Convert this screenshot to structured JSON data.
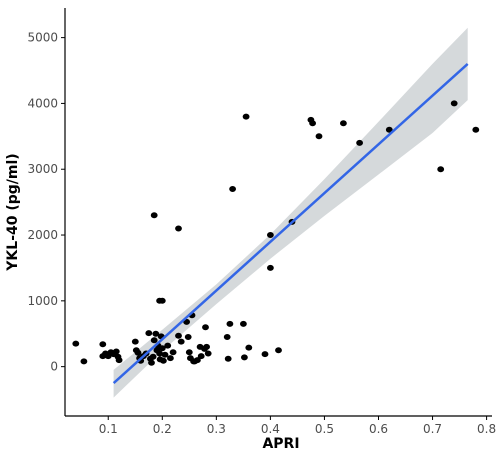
{
  "chart_data": {
    "type": "scatter",
    "title": "",
    "xlabel": "APRI",
    "ylabel": "YKL-40 (pg/ml)",
    "xlim": [
      0.02,
      0.81
    ],
    "ylim": [
      -750,
      5450
    ],
    "x_ticks": [
      0.1,
      0.2,
      0.3,
      0.4,
      0.5,
      0.6,
      0.7,
      0.8
    ],
    "x_tick_labels": [
      "0.1",
      "0.2",
      "0.3",
      "0.4",
      "0.5",
      "0.6",
      "0.7",
      "0.8"
    ],
    "y_ticks": [
      0,
      1000,
      2000,
      3000,
      4000,
      5000
    ],
    "y_tick_labels": [
      "0",
      "1000",
      "2000",
      "3000",
      "4000",
      "5000"
    ],
    "grid": false,
    "legend": "none",
    "colors": {
      "points": "#000000",
      "fit_line": "#3366e6",
      "confidence_band": "#d5d9db",
      "axis": "#000000",
      "tick_text": "#4d4d4d"
    },
    "points": [
      {
        "x": 0.04,
        "y": 350
      },
      {
        "x": 0.055,
        "y": 80
      },
      {
        "x": 0.09,
        "y": 340
      },
      {
        "x": 0.09,
        "y": 160
      },
      {
        "x": 0.095,
        "y": 200
      },
      {
        "x": 0.1,
        "y": 160
      },
      {
        "x": 0.105,
        "y": 220
      },
      {
        "x": 0.11,
        "y": 190
      },
      {
        "x": 0.115,
        "y": 230
      },
      {
        "x": 0.118,
        "y": 150
      },
      {
        "x": 0.12,
        "y": 100
      },
      {
        "x": 0.15,
        "y": 380
      },
      {
        "x": 0.152,
        "y": 250
      },
      {
        "x": 0.155,
        "y": 210
      },
      {
        "x": 0.158,
        "y": 130
      },
      {
        "x": 0.16,
        "y": 90
      },
      {
        "x": 0.165,
        "y": 160
      },
      {
        "x": 0.17,
        "y": 200
      },
      {
        "x": 0.175,
        "y": 510
      },
      {
        "x": 0.178,
        "y": 120
      },
      {
        "x": 0.18,
        "y": 60
      },
      {
        "x": 0.183,
        "y": 150
      },
      {
        "x": 0.185,
        "y": 400
      },
      {
        "x": 0.188,
        "y": 500
      },
      {
        "x": 0.19,
        "y": 250
      },
      {
        "x": 0.192,
        "y": 320
      },
      {
        "x": 0.195,
        "y": 200
      },
      {
        "x": 0.196,
        "y": 110
      },
      {
        "x": 0.198,
        "y": 460
      },
      {
        "x": 0.2,
        "y": 280
      },
      {
        "x": 0.202,
        "y": 90
      },
      {
        "x": 0.205,
        "y": 180
      },
      {
        "x": 0.21,
        "y": 320
      },
      {
        "x": 0.215,
        "y": 130
      },
      {
        "x": 0.22,
        "y": 220
      },
      {
        "x": 0.23,
        "y": 470
      },
      {
        "x": 0.235,
        "y": 380
      },
      {
        "x": 0.245,
        "y": 680
      },
      {
        "x": 0.248,
        "y": 450
      },
      {
        "x": 0.25,
        "y": 220
      },
      {
        "x": 0.252,
        "y": 130
      },
      {
        "x": 0.255,
        "y": 780
      },
      {
        "x": 0.258,
        "y": 80
      },
      {
        "x": 0.26,
        "y": 80
      },
      {
        "x": 0.265,
        "y": 100
      },
      {
        "x": 0.27,
        "y": 300
      },
      {
        "x": 0.272,
        "y": 160
      },
      {
        "x": 0.278,
        "y": 270
      },
      {
        "x": 0.28,
        "y": 600
      },
      {
        "x": 0.282,
        "y": 300
      },
      {
        "x": 0.285,
        "y": 200
      },
      {
        "x": 0.32,
        "y": 450
      },
      {
        "x": 0.322,
        "y": 120
      },
      {
        "x": 0.325,
        "y": 650
      },
      {
        "x": 0.35,
        "y": 650
      },
      {
        "x": 0.352,
        "y": 140
      },
      {
        "x": 0.36,
        "y": 290
      },
      {
        "x": 0.39,
        "y": 190
      },
      {
        "x": 0.415,
        "y": 250
      },
      {
        "x": 0.195,
        "y": 1000
      },
      {
        "x": 0.2,
        "y": 1000
      },
      {
        "x": 0.185,
        "y": 2300
      },
      {
        "x": 0.23,
        "y": 2100
      },
      {
        "x": 0.33,
        "y": 2700
      },
      {
        "x": 0.355,
        "y": 3800
      },
      {
        "x": 0.4,
        "y": 2000
      },
      {
        "x": 0.4,
        "y": 1500
      },
      {
        "x": 0.44,
        "y": 2200
      },
      {
        "x": 0.475,
        "y": 3750
      },
      {
        "x": 0.478,
        "y": 3700
      },
      {
        "x": 0.49,
        "y": 3500
      },
      {
        "x": 0.535,
        "y": 3700
      },
      {
        "x": 0.565,
        "y": 3400
      },
      {
        "x": 0.62,
        "y": 3600
      },
      {
        "x": 0.715,
        "y": 3000
      },
      {
        "x": 0.74,
        "y": 4000
      },
      {
        "x": 0.78,
        "y": 3600
      }
    ],
    "fit_line": {
      "x0": 0.11,
      "y0": -250,
      "x1": 0.765,
      "y1": 4600
    },
    "confidence_band": {
      "x": [
        0.11,
        0.2,
        0.3,
        0.4,
        0.5,
        0.6,
        0.7,
        0.765
      ],
      "upper": [
        -50,
        560,
        1250,
        2010,
        2850,
        3720,
        4600,
        5150
      ],
      "lower": [
        -470,
        240,
        950,
        1640,
        2290,
        2920,
        3550,
        4050
      ]
    }
  }
}
